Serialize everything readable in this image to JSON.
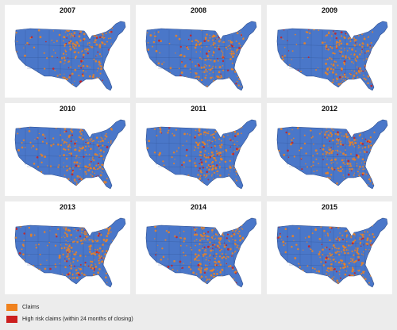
{
  "panels": [
    {
      "year": "2007"
    },
    {
      "year": "2008"
    },
    {
      "year": "2009"
    },
    {
      "year": "2010"
    },
    {
      "year": "2011"
    },
    {
      "year": "2012"
    },
    {
      "year": "2013"
    },
    {
      "year": "2014"
    },
    {
      "year": "2015"
    }
  ],
  "legend": {
    "claims_label": "Claims",
    "high_risk_label": "High risk claims (within 24 months of closing)"
  },
  "colors": {
    "background": "#ececec",
    "panel": "#ffffff",
    "land": "#4a77c9",
    "state_border": "#2f4f8f",
    "claims": "#f0821e",
    "high_risk": "#cc1f1f"
  }
}
